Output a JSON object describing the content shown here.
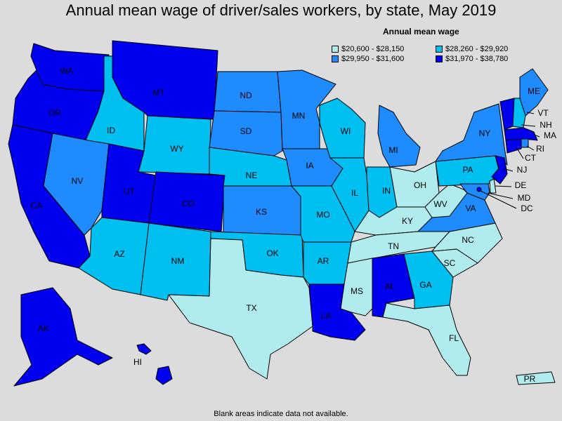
{
  "title": "Annual mean wage of driver/sales workers, by state, May 2019",
  "legend": {
    "title": "Annual mean wage",
    "bins": [
      {
        "label": "$20,600 - $28,150",
        "color": "#b0eced"
      },
      {
        "label": "$28,260 - $29,920",
        "color": "#00c0f2"
      },
      {
        "label": "$29,950 - $31,600",
        "color": "#1e8cff"
      },
      {
        "label": "$31,970 - $38,780",
        "color": "#0000ee"
      }
    ]
  },
  "footnote": "Blank areas indicate data not available.",
  "states": {
    "WA": {
      "label": "WA",
      "bin": 3
    },
    "OR": {
      "label": "OR",
      "bin": 3
    },
    "CA": {
      "label": "CA",
      "bin": 3
    },
    "ID": {
      "label": "ID",
      "bin": 1
    },
    "NV": {
      "label": "NV",
      "bin": 2
    },
    "MT": {
      "label": "MT",
      "bin": 3
    },
    "WY": {
      "label": "WY",
      "bin": 1
    },
    "UT": {
      "label": "UT",
      "bin": 3
    },
    "CO": {
      "label": "CO",
      "bin": 3
    },
    "AZ": {
      "label": "AZ",
      "bin": 1
    },
    "NM": {
      "label": "NM",
      "bin": 1
    },
    "ND": {
      "label": "ND",
      "bin": 2
    },
    "SD": {
      "label": "SD",
      "bin": 2
    },
    "NE": {
      "label": "NE",
      "bin": 1
    },
    "KS": {
      "label": "KS",
      "bin": 2
    },
    "OK": {
      "label": "OK",
      "bin": 1
    },
    "TX": {
      "label": "TX",
      "bin": 0
    },
    "MN": {
      "label": "MN",
      "bin": 2
    },
    "IA": {
      "label": "IA",
      "bin": 2
    },
    "MO": {
      "label": "MO",
      "bin": 1
    },
    "AR": {
      "label": "AR",
      "bin": 1
    },
    "LA": {
      "label": "LA",
      "bin": 3
    },
    "WI": {
      "label": "WI",
      "bin": 1
    },
    "IL": {
      "label": "IL",
      "bin": 1
    },
    "MI": {
      "label": "MI",
      "bin": 2
    },
    "IN": {
      "label": "IN",
      "bin": 1
    },
    "OH": {
      "label": "OH",
      "bin": 0
    },
    "KY": {
      "label": "KY",
      "bin": 0
    },
    "TN": {
      "label": "TN",
      "bin": 0
    },
    "MS": {
      "label": "MS",
      "bin": 0
    },
    "AL": {
      "label": "AL",
      "bin": 3
    },
    "GA": {
      "label": "GA",
      "bin": 1
    },
    "FL": {
      "label": "FL",
      "bin": 0
    },
    "SC": {
      "label": "SC",
      "bin": 0
    },
    "NC": {
      "label": "NC",
      "bin": 0
    },
    "VA": {
      "label": "VA",
      "bin": 2
    },
    "WV": {
      "label": "WV",
      "bin": 0
    },
    "PA": {
      "label": "PA",
      "bin": 1
    },
    "NY": {
      "label": "NY",
      "bin": 2
    },
    "ME": {
      "label": "ME",
      "bin": 2
    },
    "VT": {
      "label": "VT",
      "bin": 3
    },
    "NH": {
      "label": "NH",
      "bin": 1
    },
    "MA": {
      "label": "MA",
      "bin": 3
    },
    "RI": {
      "label": "RI",
      "bin": 2
    },
    "CT": {
      "label": "CT",
      "bin": 3
    },
    "NJ": {
      "label": "NJ",
      "bin": 3
    },
    "DE": {
      "label": "DE",
      "bin": 0
    },
    "MD": {
      "label": "MD",
      "bin": 2
    },
    "DC": {
      "label": "DC",
      "bin": 3
    },
    "AK": {
      "label": "AK",
      "bin": 3
    },
    "HI": {
      "label": "HI",
      "bin": 3
    },
    "PR": {
      "label": "PR",
      "bin": 0
    }
  }
}
